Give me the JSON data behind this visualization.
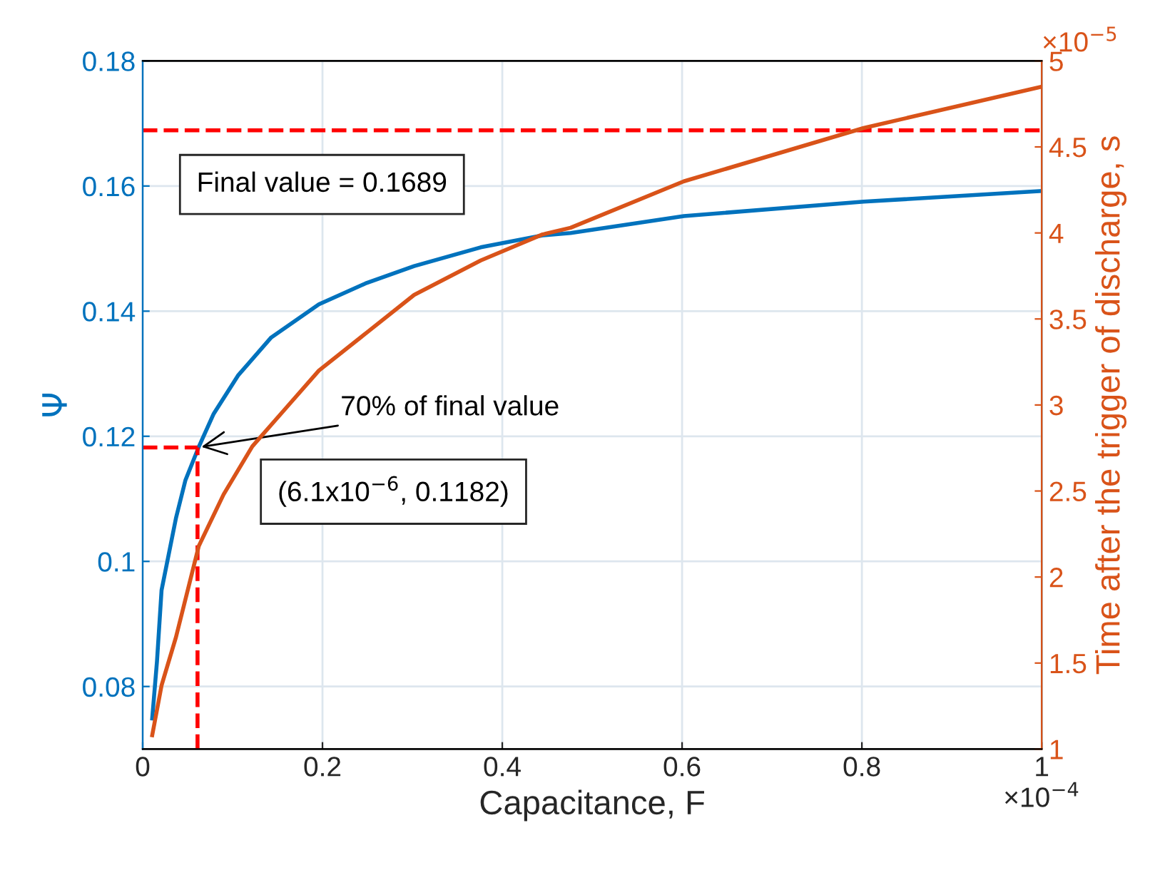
{
  "chart_data": {
    "type": "line",
    "xlabel": "Capacitance, F",
    "ylabel": "Ψ",
    "y2label": "Time after the trigger of discharge, s",
    "xlim": [
      0,
      1
    ],
    "xticks": [
      0,
      0.2,
      0.4,
      0.6,
      0.8,
      1
    ],
    "ylim": [
      0.07,
      0.18
    ],
    "yticks": [
      0.08,
      0.1,
      0.12,
      0.14,
      0.16,
      0.18
    ],
    "y2lim": [
      1,
      5
    ],
    "y2ticks": [
      1,
      1.5,
      2,
      2.5,
      3,
      3.5,
      4,
      4.5,
      5
    ],
    "grid": true,
    "legend": false,
    "line_style": "solid",
    "marker": "none",
    "series": [
      {
        "color": "#0072bd",
        "x": [
          0.0106,
          0.0159,
          0.021,
          0.037,
          0.0476,
          0.0624,
          0.079,
          0.106,
          0.143,
          0.196,
          0.249,
          0.302,
          0.376,
          0.444,
          0.476,
          0.602,
          0.802,
          1.0
        ],
        "values": [
          0.0749,
          0.084,
          0.0954,
          0.1069,
          0.113,
          0.1183,
          0.1236,
          0.1297,
          0.1358,
          0.1411,
          0.1445,
          0.1472,
          0.1502,
          0.1521,
          0.1525,
          0.1552,
          0.1575,
          0.1592
        ]
      },
      {
        "color": "#d95319",
        "axis": "y2",
        "x": [
          0.0106,
          0.021,
          0.037,
          0.0624,
          0.09,
          0.122,
          0.159,
          0.196,
          0.249,
          0.302,
          0.376,
          0.444,
          0.476,
          0.602,
          0.802,
          1.0
        ],
        "values": [
          1.08,
          1.37,
          1.65,
          2.18,
          2.48,
          2.76,
          2.98,
          3.2,
          3.42,
          3.64,
          3.84,
          3.99,
          4.03,
          4.3,
          4.61,
          4.85
        ]
      },
      {
        "color": "#ff0000",
        "line_style": "dashed",
        "x": [
          0,
          0.061
        ],
        "values": [
          0.1182,
          0.1182
        ]
      },
      {
        "color": "#ff0000",
        "line_style": "dashed",
        "x": [
          0.061,
          0.061
        ],
        "values": [
          0.07,
          0.1182
        ]
      }
    ],
    "ref_lines": [
      {
        "axis": "y",
        "value": 0.1689,
        "color": "#ff0000",
        "line_style": "dashed"
      }
    ],
    "annotations": [
      "Final value = 0.1689",
      {
        "text": "70% of final value",
        "x": 0.061,
        "y": 0.1182
      },
      "(6.1x10$^{−6}$, 0.1182)",
      "×10$^{−4}$",
      "×10$^{−5}$"
    ]
  }
}
